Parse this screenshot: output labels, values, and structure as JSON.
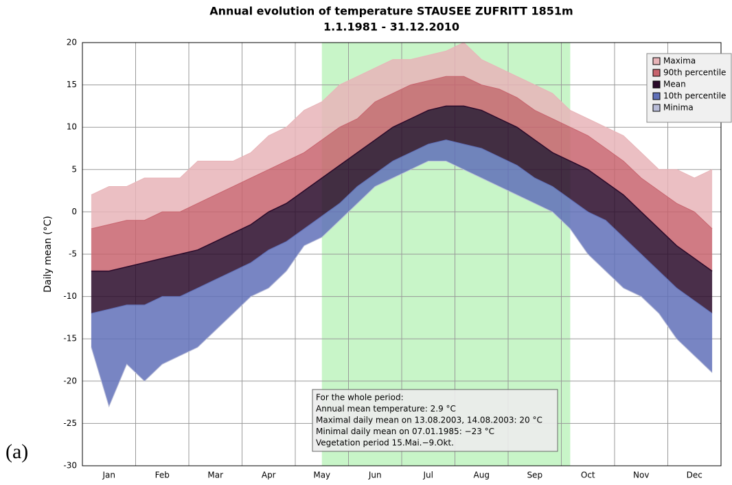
{
  "chart_data": {
    "type": "area",
    "title": "Annual evolution of temperature STAUSEE ZUFRITT 1851m",
    "subtitle": "1.1.1981 - 31.12.2010",
    "y_label": "Daily mean (°C)",
    "panel_label": "(a)",
    "categories": [
      null,
      "Jan",
      null,
      null,
      "Feb",
      null,
      null,
      "Mar",
      null,
      null,
      "Apr",
      null,
      null,
      "May",
      null,
      null,
      "Jun",
      null,
      null,
      "Jul",
      null,
      null,
      "Aug",
      null,
      null,
      "Sep",
      null,
      null,
      "Oct",
      null,
      null,
      "Nov",
      null,
      null,
      "Dec",
      null
    ],
    "series": [
      {
        "name": "Maxima",
        "color": "#e8b4b8",
        "values": [
          2,
          3,
          3,
          4,
          4,
          4,
          6,
          6,
          6,
          7,
          9,
          10,
          12,
          13,
          15,
          16,
          17,
          18,
          18,
          18.5,
          19,
          20,
          18,
          17,
          16,
          15,
          14,
          12,
          11,
          10,
          9,
          7,
          5,
          5,
          4,
          5
        ]
      },
      {
        "name": "90th percentile",
        "color": "#c8646e",
        "values": [
          -2,
          -1.5,
          -1,
          -1,
          0,
          0,
          1,
          2,
          3,
          4,
          5,
          6,
          7,
          8.5,
          10,
          11,
          13,
          14,
          15,
          15.5,
          16,
          16,
          15,
          14.5,
          13.5,
          12,
          11,
          10,
          9,
          7.5,
          6,
          4,
          2.5,
          1,
          0,
          -2
        ]
      },
      {
        "name": "Mean",
        "color": "#2a0a2a",
        "values": [
          -7,
          -7,
          -6.5,
          -6,
          -5.5,
          -5,
          -4.5,
          -3.5,
          -2.5,
          -1.5,
          0,
          1,
          2.5,
          4,
          5.5,
          7,
          8.5,
          10,
          11,
          12,
          12.5,
          12.5,
          12,
          11,
          10,
          8.5,
          7,
          6,
          5,
          3.5,
          2,
          0,
          -2,
          -4,
          -5.5,
          -7
        ]
      },
      {
        "name": "10th percentile",
        "color": "#6070b8",
        "values": [
          -12,
          -11.5,
          -11,
          -11,
          -10,
          -10,
          -9,
          -8,
          -7,
          -6,
          -4.5,
          -3.5,
          -2,
          -0.5,
          1,
          3,
          4.5,
          6,
          7,
          8,
          8.5,
          8,
          7.5,
          6.5,
          5.5,
          4,
          3,
          1.5,
          0,
          -1,
          -3,
          -5,
          -7,
          -9,
          -10.5,
          -12
        ]
      },
      {
        "name": "Minima",
        "color": "#b8bcd8",
        "values": [
          -16,
          -23,
          -18,
          -20,
          -18,
          -17,
          -16,
          -14,
          -12,
          -10,
          -9,
          -7,
          -4,
          -3,
          -1,
          1,
          3,
          4,
          5,
          6,
          6,
          5,
          4,
          3,
          2,
          1,
          0,
          -2,
          -5,
          -7,
          -9,
          -10,
          -12,
          -15,
          -17,
          -19
        ]
      }
    ],
    "shade": {
      "from": 13,
      "to": 27,
      "color": "#c8f5c8"
    },
    "ylim": [
      -30,
      20
    ],
    "yticks": [
      -30,
      -25,
      -20,
      -15,
      -10,
      -5,
      0,
      5,
      10,
      15,
      20
    ],
    "grid": true,
    "annotation": [
      "For the whole period:",
      "Annual mean temperature: 2.9 °C",
      "Maximal daily mean on 13.08.2003, 14.08.2003: 20 °C",
      "Minimal daily mean on 07.01.1985: −23 °C",
      "Vegetation period 15.Mai.−9.Okt."
    ]
  }
}
